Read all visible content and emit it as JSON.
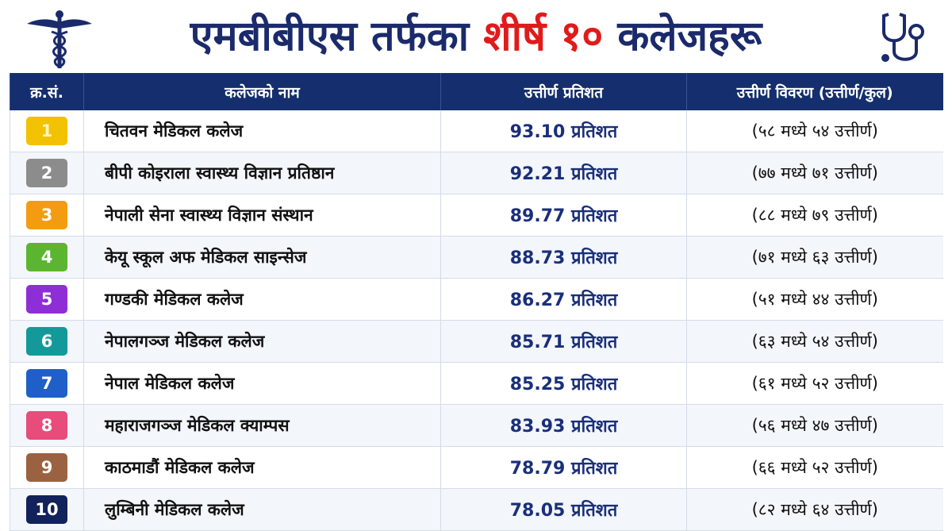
{
  "header": {
    "title_start": "एमबीबीएस तर्फका",
    "title_highlight": "शीर्ष १०",
    "title_end": "कलेजहरू"
  },
  "table": {
    "columns": [
      "क्र.सं.",
      "कलेजको नाम",
      "उत्तीर्ण प्रतिशत",
      "उत्तीर्ण विवरण (उत्तीर्ण/कुल)"
    ],
    "rows": [
      [
        "1",
        "चितवन मेडिकल कलेज",
        "93.10 प्रतिशत",
        "(५८ मध्ये ५४ उत्तीर्ण)"
      ],
      [
        "2",
        "बीपी कोइराला स्वास्थ्य विज्ञान प्रतिष्ठान",
        "92.21 प्रतिशत",
        "(७७ मध्ये ७१ उत्तीर्ण)"
      ],
      [
        "3",
        "नेपाली सेना स्वास्थ्य विज्ञान संस्थान",
        "89.77 प्रतिशत",
        "(८८ मध्ये ७९ उत्तीर्ण)"
      ],
      [
        "4",
        "केयू स्कूल अफ मेडिकल साइन्सेज",
        "88.73 प्रतिशत",
        "(७१ मध्ये ६३ उत्तीर्ण)"
      ],
      [
        "5",
        "गण्डकी मेडिकल कलेज",
        "86.27 प्रतिशत",
        "(५१ मध्ये ४४ उत्तीर्ण)"
      ],
      [
        "6",
        "नेपालगञ्ज मेडिकल कलेज",
        "85.71 प्रतिशत",
        "(६३ मध्ये ५४ उत्तीर्ण)"
      ],
      [
        "7",
        "नेपाल मेडिकल कलेज",
        "85.25 प्रतिशत",
        "(६१ मध्ये ५२ उत्तीर्ण)"
      ],
      [
        "8",
        "महाराजगञ्ज मेडिकल क्याम्पस",
        "83.93 प्रतिशत",
        "(५६ मध्ये ४७ उत्तीर्ण)"
      ],
      [
        "9",
        "काठमाडौं मेडिकल कलेज",
        "78.79 प्रतिशत",
        "(६६ मध्ये ५२ उत्तीर्ण)"
      ],
      [
        "10",
        "लुम्बिनी मेडिकल कलेज",
        "78.05 प्रतिशत",
        "(८२ मध्ये ६४ उत्तीर्ण)"
      ]
    ]
  }
}
